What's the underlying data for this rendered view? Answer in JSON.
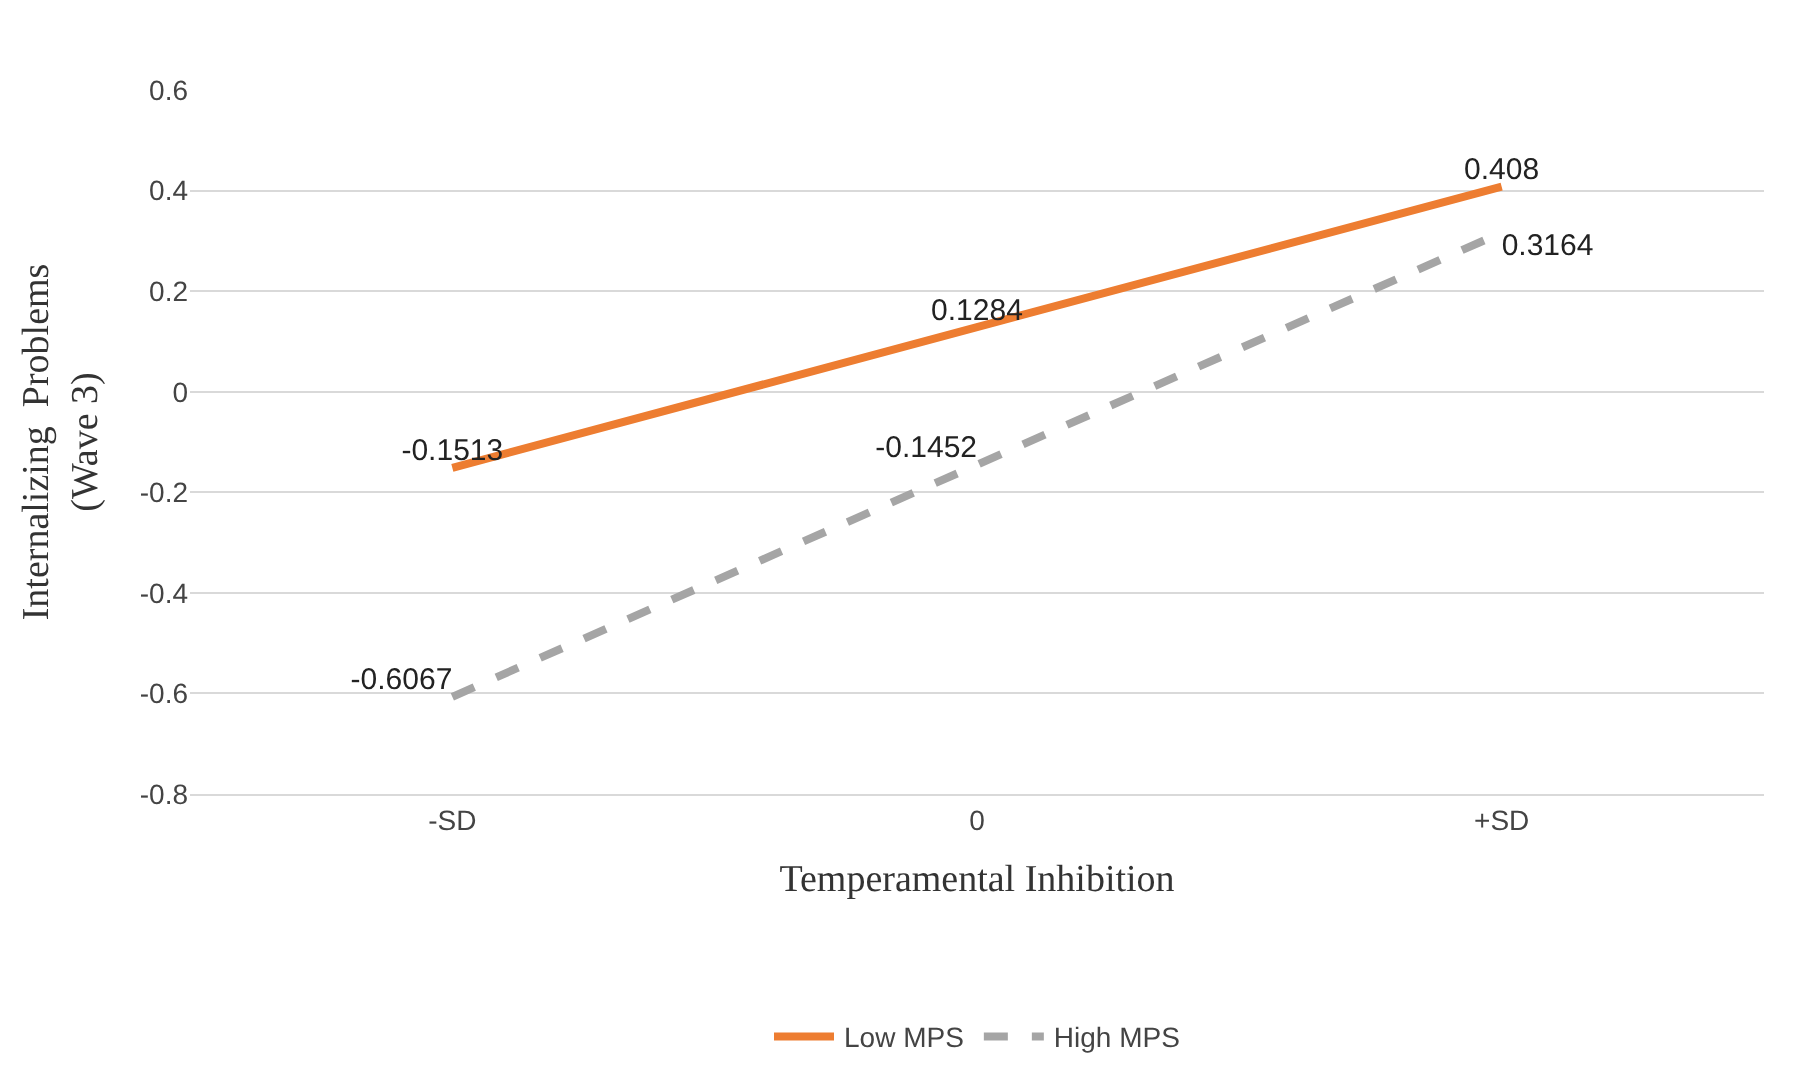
{
  "chart_data": {
    "type": "line",
    "xlabel": "Temperamental Inhibition",
    "ylabel": "Internalizing  Problems\n(Wave 3)",
    "categories": [
      "-SD",
      "0",
      "+SD"
    ],
    "series": [
      {
        "name": "Low MPS",
        "color": "#ed7d31",
        "values": [
          -0.1513,
          0.1284,
          0.408
        ],
        "line_style": "solid"
      },
      {
        "name": "High MPS",
        "color": "#a5a5a5",
        "values": [
          -0.6067,
          -0.1452,
          0.3164
        ],
        "line_style": "dashed"
      }
    ],
    "ylim": [
      -0.8,
      0.6
    ],
    "yticks": [
      -0.8,
      -0.6,
      -0.4,
      -0.2,
      0,
      0.2,
      0.4,
      0.6
    ],
    "grid": "y",
    "legend": "bottom",
    "marker": "none",
    "data_labels": true
  }
}
